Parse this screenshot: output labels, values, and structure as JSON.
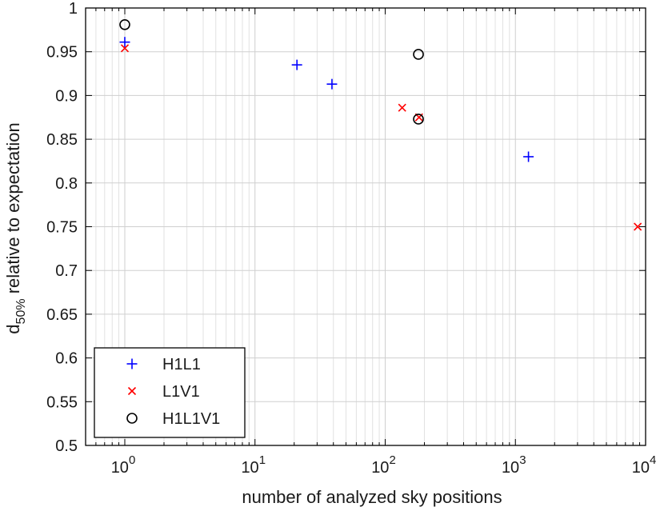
{
  "chart_data": {
    "type": "scatter",
    "xscale": "log",
    "xlim": [
      0.5,
      10000
    ],
    "ylim": [
      0.5,
      1.0
    ],
    "grid": true,
    "xlabel": "number of analyzed sky positions",
    "ylabel_main": "d",
    "ylabel_sub": "50%",
    "ylabel_rest": " relative to expectation",
    "xticks": [
      {
        "value": 1,
        "base": "10",
        "exp": "0"
      },
      {
        "value": 10,
        "base": "10",
        "exp": "1"
      },
      {
        "value": 100,
        "base": "10",
        "exp": "2"
      },
      {
        "value": 1000,
        "base": "10",
        "exp": "3"
      },
      {
        "value": 10000,
        "base": "10",
        "exp": "4"
      }
    ],
    "yticks": [
      0.5,
      0.55,
      0.6,
      0.65,
      0.7,
      0.75,
      0.8,
      0.85,
      0.9,
      0.95,
      1
    ],
    "ytick_labels": [
      "0.5",
      "0.55",
      "0.6",
      "0.65",
      "0.7",
      "0.75",
      "0.8",
      "0.85",
      "0.9",
      "0.95",
      "1"
    ],
    "legend_position": "bottom-left",
    "series": [
      {
        "name": "H1L1",
        "marker": "plus",
        "color": "#0000ff",
        "points": [
          [
            1,
            0.961
          ],
          [
            21,
            0.935
          ],
          [
            39,
            0.913
          ],
          [
            1260,
            0.83
          ]
        ]
      },
      {
        "name": "L1V1",
        "marker": "x",
        "color": "#ff0000",
        "points": [
          [
            1,
            0.954
          ],
          [
            135,
            0.886
          ],
          [
            182,
            0.875
          ],
          [
            8700,
            0.75
          ]
        ]
      },
      {
        "name": "H1L1V1",
        "marker": "circle",
        "color": "#000000",
        "points": [
          [
            1,
            0.981
          ],
          [
            180,
            0.947
          ],
          [
            180,
            0.873
          ]
        ]
      }
    ]
  }
}
